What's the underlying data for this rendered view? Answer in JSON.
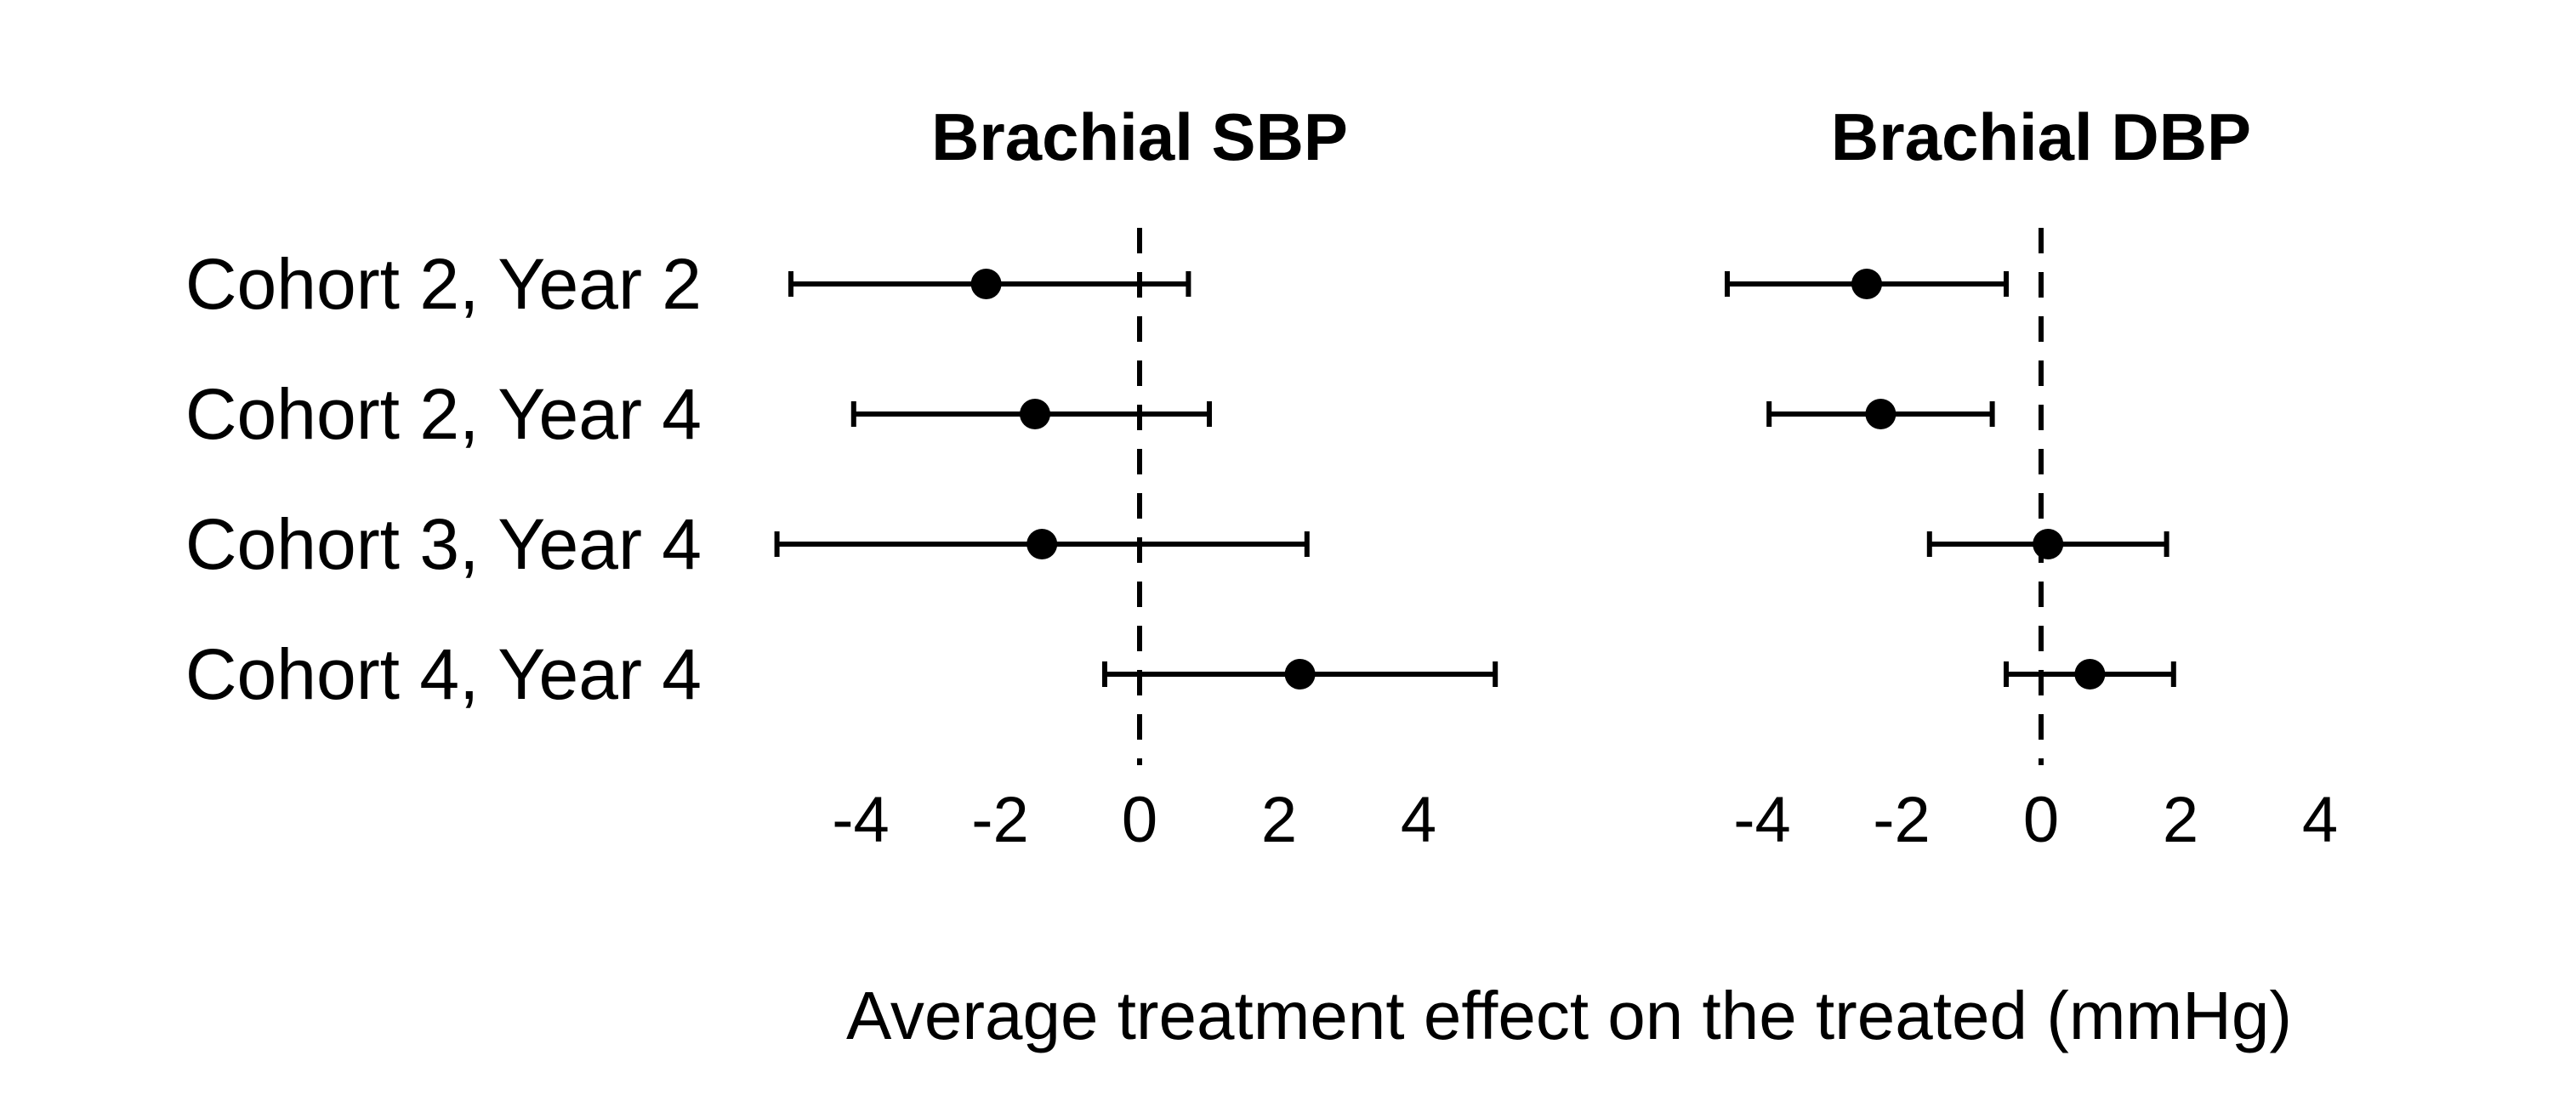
{
  "chart_data": {
    "type": "forest",
    "categories": [
      "Cohort 2, Year 2",
      "Cohort 2, Year 4",
      "Cohort 3, Year 4",
      "Cohort 4, Year 4"
    ],
    "xlabel": "Average treatment effect on the treated (mmHg)",
    "xlim": [
      -5.2,
      5.2
    ],
    "xticks": [
      -4,
      -2,
      0,
      2,
      4
    ],
    "reference_line": 0,
    "reference_line_style": "dashed",
    "grid": false,
    "marker": "filled circle",
    "color": "#000000",
    "panels": [
      {
        "title": "Brachial SBP",
        "series": [
          {
            "category": "Cohort 2, Year 2",
            "estimate": -2.2,
            "lower": -5.0,
            "upper": 0.7
          },
          {
            "category": "Cohort 2, Year 4",
            "estimate": -1.5,
            "lower": -4.1,
            "upper": 1.0
          },
          {
            "category": "Cohort 3, Year 4",
            "estimate": -1.4,
            "lower": -5.2,
            "upper": 2.4
          },
          {
            "category": "Cohort 4, Year 4",
            "estimate": 2.3,
            "lower": -0.5,
            "upper": 5.1
          }
        ]
      },
      {
        "title": "Brachial DBP",
        "series": [
          {
            "category": "Cohort 2, Year 2",
            "estimate": -2.5,
            "lower": -4.5,
            "upper": -0.5
          },
          {
            "category": "Cohort 2, Year 4",
            "estimate": -2.3,
            "lower": -3.9,
            "upper": -0.7
          },
          {
            "category": "Cohort 3, Year 4",
            "estimate": 0.1,
            "lower": -1.6,
            "upper": 1.8
          },
          {
            "category": "Cohort 4, Year 4",
            "estimate": 0.7,
            "lower": -0.5,
            "upper": 1.9
          }
        ]
      }
    ]
  }
}
